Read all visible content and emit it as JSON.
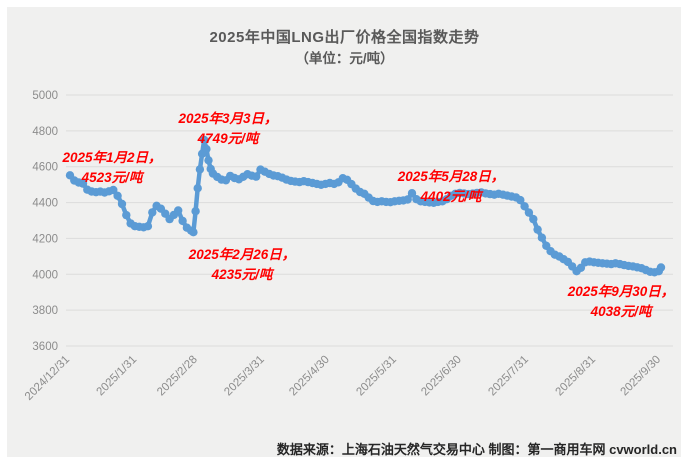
{
  "title": {
    "main": "2025年中国LNG出厂价格全国指数走势",
    "unit": "（单位：元/吨）"
  },
  "footer": {
    "text": "数据来源：上海石油天然气交易中心 制图：第一商用车网 cvworld.cn"
  },
  "chart_data": {
    "type": "line",
    "title": "2025年中国LNG出厂价格全国指数走势",
    "subtitle": "（单位：元/吨）",
    "ylim": [
      3600,
      5000
    ],
    "ytick_step": 200,
    "yticks": [
      5000,
      4800,
      4600,
      4400,
      4200,
      4000,
      3800,
      3600
    ],
    "xticks": [
      "2024/12/31",
      "2025/1/31",
      "2025/2/28",
      "2025/3/31",
      "2025/4/30",
      "2025/5/31",
      "2025/6/30",
      "2025/7/31",
      "2025/8/31",
      "2025/9/30"
    ],
    "grid": "horizontal",
    "legend": "none",
    "line_color": "#5B9BD5",
    "annotation_color": "#FF0000",
    "dates": [
      "2024/12/31",
      "2025/1/2",
      "2025/1/4",
      "2025/1/6",
      "2025/1/8",
      "2025/1/10",
      "2025/1/12",
      "2025/1/14",
      "2025/1/16",
      "2025/1/18",
      "2025/1/20",
      "2025/1/22",
      "2025/1/24",
      "2025/1/26",
      "2025/1/28",
      "2025/1/30",
      "2025/2/1",
      "2025/2/3",
      "2025/2/5",
      "2025/2/7",
      "2025/2/9",
      "2025/2/11",
      "2025/2/13",
      "2025/2/15",
      "2025/2/17",
      "2025/2/19",
      "2025/2/21",
      "2025/2/23",
      "2025/2/25",
      "2025/2/26",
      "2025/2/27",
      "2025/2/28",
      "2025/3/1",
      "2025/3/2",
      "2025/3/3",
      "2025/3/4",
      "2025/3/5",
      "2025/3/6",
      "2025/3/7",
      "2025/3/9",
      "2025/3/11",
      "2025/3/13",
      "2025/3/15",
      "2025/3/17",
      "2025/3/19",
      "2025/3/21",
      "2025/3/23",
      "2025/3/25",
      "2025/3/27",
      "2025/3/29",
      "2025/3/31",
      "2025/4/2",
      "2025/4/4",
      "2025/4/6",
      "2025/4/8",
      "2025/4/10",
      "2025/4/12",
      "2025/4/14",
      "2025/4/16",
      "2025/4/18",
      "2025/4/20",
      "2025/4/22",
      "2025/4/24",
      "2025/4/26",
      "2025/4/28",
      "2025/4/30",
      "2025/5/2",
      "2025/5/4",
      "2025/5/6",
      "2025/5/8",
      "2025/5/10",
      "2025/5/12",
      "2025/5/14",
      "2025/5/16",
      "2025/5/18",
      "2025/5/20",
      "2025/5/22",
      "2025/5/24",
      "2025/5/26",
      "2025/5/28",
      "2025/5/30",
      "2025/6/1",
      "2025/6/3",
      "2025/6/5",
      "2025/6/7",
      "2025/6/9",
      "2025/6/11",
      "2025/6/13",
      "2025/6/15",
      "2025/6/17",
      "2025/6/19",
      "2025/6/21",
      "2025/6/23",
      "2025/6/25",
      "2025/6/27",
      "2025/6/29",
      "2025/7/1",
      "2025/7/3",
      "2025/7/5",
      "2025/7/7",
      "2025/7/9",
      "2025/7/11",
      "2025/7/13",
      "2025/7/15",
      "2025/7/17",
      "2025/7/19",
      "2025/7/21",
      "2025/7/23",
      "2025/7/25",
      "2025/7/27",
      "2025/7/29",
      "2025/7/31",
      "2025/8/2",
      "2025/8/4",
      "2025/8/6",
      "2025/8/8",
      "2025/8/10",
      "2025/8/12",
      "2025/8/14",
      "2025/8/16",
      "2025/8/18",
      "2025/8/20",
      "2025/8/22",
      "2025/8/24",
      "2025/8/26",
      "2025/8/28",
      "2025/8/30",
      "2025/9/1",
      "2025/9/3",
      "2025/9/5",
      "2025/9/7",
      "2025/9/9",
      "2025/9/11",
      "2025/9/13",
      "2025/9/15",
      "2025/9/17",
      "2025/9/19",
      "2025/9/21",
      "2025/9/23",
      "2025/9/25",
      "2025/9/27",
      "2025/9/29",
      "2025/9/30"
    ],
    "values": [
      4552,
      4523,
      4512,
      4506,
      4472,
      4462,
      4458,
      4461,
      4456,
      4463,
      4470,
      4438,
      4392,
      4330,
      4284,
      4268,
      4265,
      4262,
      4268,
      4345,
      4382,
      4366,
      4338,
      4308,
      4331,
      4356,
      4298,
      4260,
      4243,
      4235,
      4352,
      4480,
      4585,
      4672,
      4749,
      4698,
      4636,
      4588,
      4562,
      4543,
      4528,
      4524,
      4549,
      4537,
      4530,
      4544,
      4558,
      4550,
      4545,
      4584,
      4572,
      4560,
      4551,
      4547,
      4539,
      4528,
      4521,
      4517,
      4514,
      4519,
      4514,
      4509,
      4504,
      4499,
      4504,
      4509,
      4504,
      4513,
      4536,
      4527,
      4503,
      4478,
      4459,
      4449,
      4428,
      4409,
      4404,
      4407,
      4404,
      4402,
      4407,
      4410,
      4412,
      4417,
      4452,
      4419,
      4407,
      4404,
      4401,
      4399,
      4404,
      4407,
      4419,
      4438,
      4449,
      4454,
      4451,
      4447,
      4450,
      4454,
      4457,
      4451,
      4447,
      4444,
      4449,
      4444,
      4439,
      4434,
      4429,
      4414,
      4379,
      4344,
      4308,
      4249,
      4204,
      4159,
      4129,
      4109,
      4099,
      4084,
      4069,
      4044,
      4017,
      4036,
      4067,
      4071,
      4067,
      4064,
      4061,
      4059,
      4057,
      4061,
      4057,
      4051,
      4047,
      4044,
      4039,
      4034,
      4024,
      4014,
      4011,
      4017,
      4038
    ],
    "annotations": [
      {
        "date_label": "2025年1月2日，",
        "value_label": "4523元/吨",
        "date": "2025/1/2",
        "value": 4523
      },
      {
        "date_label": "2025年3月3日，",
        "value_label": "4749元/吨",
        "date": "2025/3/3",
        "value": 4749
      },
      {
        "date_label": "2025年2月26日，",
        "value_label": "4235元/吨",
        "date": "2025/2/26",
        "value": 4235
      },
      {
        "date_label": "2025年5月28日，",
        "value_label": "4402元/吨",
        "date": "2025/5/28",
        "value": 4402
      },
      {
        "date_label": "2025年9月30日，",
        "value_label": "4038元/吨",
        "date": "2025/9/30",
        "value": 4038
      }
    ]
  }
}
